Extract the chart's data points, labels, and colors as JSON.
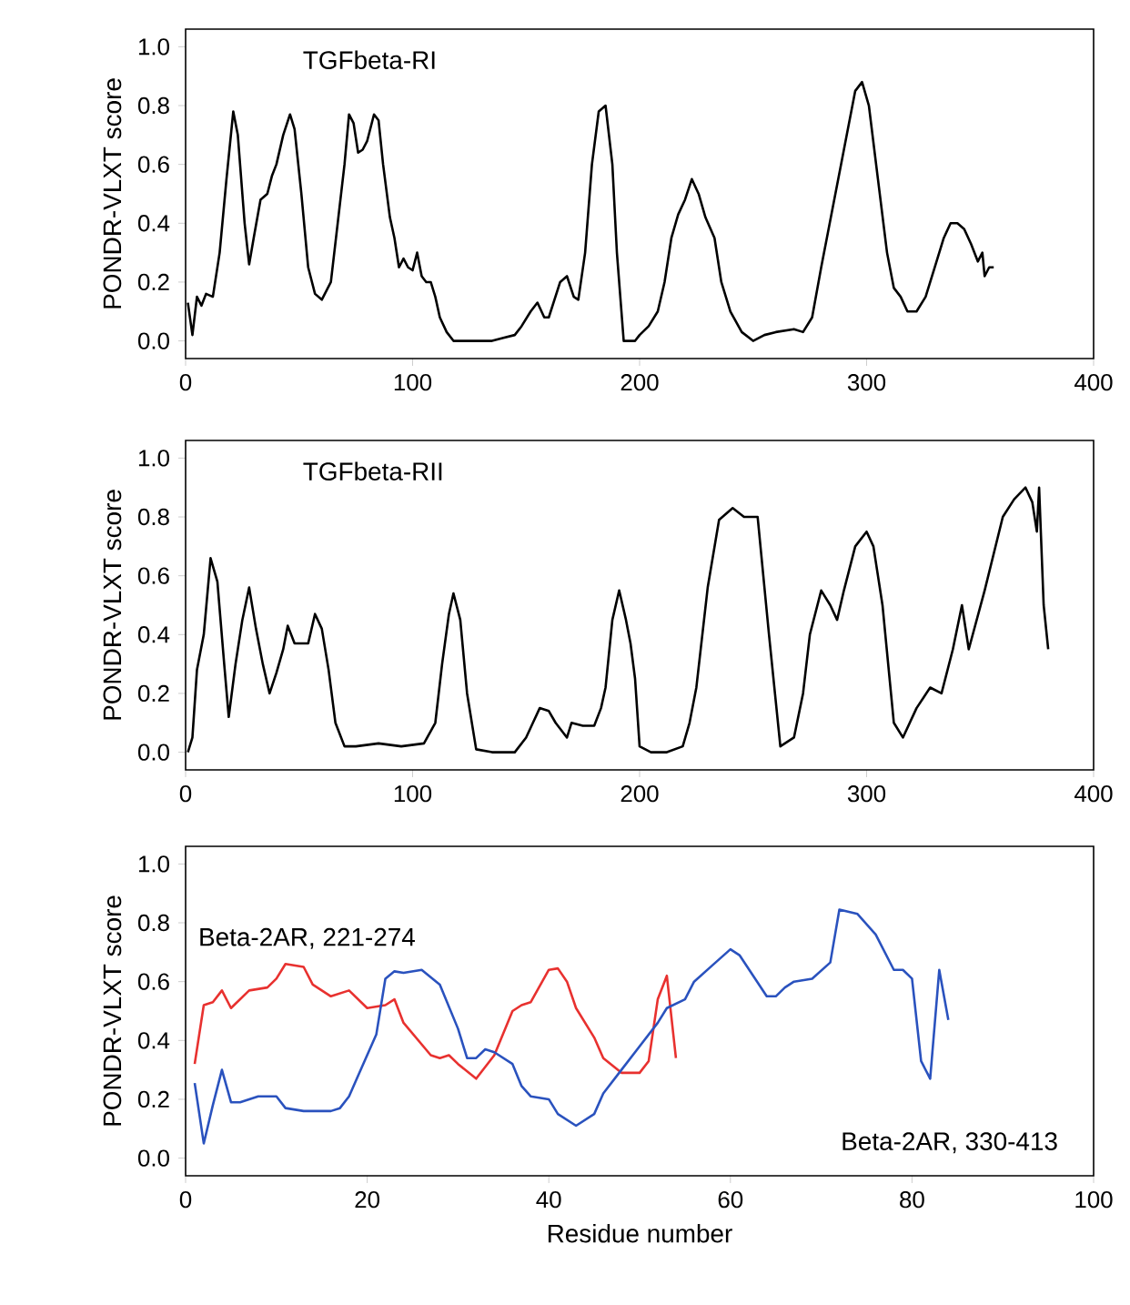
{
  "chart_data": [
    {
      "type": "line",
      "title": "TGFbeta-RI",
      "ylabel": "PONDR-VLXT score",
      "xlim": [
        0,
        400
      ],
      "ylim": [
        -0.06,
        1.06
      ],
      "xticks": [
        0,
        100,
        200,
        300,
        400
      ],
      "yticks": [
        {
          "value": 0,
          "label": "0.0"
        },
        {
          "value": 0.2,
          "label": "0.2"
        },
        {
          "value": 0.4,
          "label": "0.4"
        },
        {
          "value": 0.6,
          "label": "0.6"
        },
        {
          "value": 0.8,
          "label": "0.8"
        },
        {
          "value": 1,
          "label": "1.0"
        }
      ],
      "series": [
        {
          "color": "#000000",
          "x": [
            1,
            3,
            5,
            7,
            9,
            12,
            15,
            18,
            21,
            23,
            26,
            28,
            30,
            33,
            36,
            38,
            40,
            43,
            46,
            48,
            51,
            54,
            57,
            60,
            64,
            67,
            70,
            72,
            74,
            76,
            78,
            80,
            83,
            85,
            87,
            90,
            92,
            94,
            96,
            98,
            100,
            102,
            104,
            106,
            108,
            110,
            112,
            115,
            118,
            125,
            135,
            140,
            145,
            148,
            152,
            155,
            158,
            160,
            165,
            168,
            171,
            173,
            176,
            179,
            182,
            185,
            188,
            190,
            193,
            198,
            200,
            204,
            208,
            211,
            214,
            217,
            220,
            223,
            226,
            229,
            233,
            236,
            240,
            245,
            250,
            255,
            260,
            268,
            272,
            276,
            280,
            285,
            290,
            295,
            298,
            301,
            305,
            309,
            312,
            315,
            318,
            322,
            326,
            330,
            334,
            337,
            340,
            343,
            346,
            349,
            351,
            352,
            354,
            356
          ],
          "values": [
            0.13,
            0.02,
            0.15,
            0.12,
            0.16,
            0.15,
            0.3,
            0.55,
            0.78,
            0.7,
            0.4,
            0.26,
            0.35,
            0.48,
            0.5,
            0.56,
            0.6,
            0.7,
            0.77,
            0.72,
            0.5,
            0.25,
            0.16,
            0.14,
            0.2,
            0.4,
            0.6,
            0.77,
            0.74,
            0.64,
            0.65,
            0.68,
            0.77,
            0.75,
            0.6,
            0.42,
            0.35,
            0.25,
            0.28,
            0.25,
            0.24,
            0.3,
            0.22,
            0.2,
            0.2,
            0.15,
            0.08,
            0.03,
            0.0,
            0.0,
            0.0,
            0.01,
            0.02,
            0.05,
            0.1,
            0.13,
            0.08,
            0.08,
            0.2,
            0.22,
            0.15,
            0.14,
            0.3,
            0.6,
            0.78,
            0.8,
            0.6,
            0.3,
            0.0,
            0.0,
            0.02,
            0.05,
            0.1,
            0.2,
            0.35,
            0.43,
            0.48,
            0.55,
            0.5,
            0.42,
            0.35,
            0.2,
            0.1,
            0.03,
            0.0,
            0.02,
            0.03,
            0.04,
            0.03,
            0.08,
            0.25,
            0.45,
            0.65,
            0.85,
            0.88,
            0.8,
            0.55,
            0.3,
            0.18,
            0.15,
            0.1,
            0.1,
            0.15,
            0.25,
            0.35,
            0.4,
            0.4,
            0.38,
            0.33,
            0.27,
            0.3,
            0.22,
            0.25,
            0.25
          ]
        }
      ]
    },
    {
      "type": "line",
      "title": "TGFbeta-RII",
      "ylabel": "PONDR-VLXT score",
      "xlim": [
        0,
        400
      ],
      "ylim": [
        -0.06,
        1.06
      ],
      "xticks": [
        0,
        100,
        200,
        300,
        400
      ],
      "yticks": [
        {
          "value": 0,
          "label": "0.0"
        },
        {
          "value": 0.2,
          "label": "0.2"
        },
        {
          "value": 0.4,
          "label": "0.4"
        },
        {
          "value": 0.6,
          "label": "0.6"
        },
        {
          "value": 0.8,
          "label": "0.8"
        },
        {
          "value": 1,
          "label": "1.0"
        }
      ],
      "series": [
        {
          "color": "#000000",
          "x": [
            1,
            3,
            5,
            8,
            11,
            14,
            17,
            19,
            22,
            25,
            28,
            31,
            34,
            37,
            40,
            43,
            45,
            48,
            51,
            54,
            57,
            60,
            63,
            66,
            70,
            75,
            85,
            95,
            105,
            110,
            113,
            116,
            118,
            121,
            124,
            128,
            135,
            145,
            150,
            153,
            156,
            160,
            163,
            168,
            170,
            175,
            180,
            183,
            185,
            188,
            191,
            194,
            196,
            198,
            200,
            205,
            212,
            219,
            222,
            225,
            230,
            235,
            241,
            246,
            252,
            257,
            262,
            268,
            272,
            275,
            280,
            284,
            287,
            290,
            295,
            300,
            303,
            307,
            312,
            316,
            322,
            328,
            333,
            338,
            342,
            345,
            352,
            360,
            365,
            370,
            373,
            375,
            376,
            378,
            380
          ],
          "values": [
            0.0,
            0.05,
            0.28,
            0.4,
            0.66,
            0.58,
            0.3,
            0.12,
            0.3,
            0.45,
            0.56,
            0.42,
            0.3,
            0.2,
            0.27,
            0.35,
            0.43,
            0.37,
            0.37,
            0.37,
            0.47,
            0.42,
            0.28,
            0.1,
            0.02,
            0.02,
            0.03,
            0.02,
            0.03,
            0.1,
            0.3,
            0.47,
            0.54,
            0.45,
            0.2,
            0.01,
            0.0,
            0.0,
            0.05,
            0.1,
            0.15,
            0.14,
            0.1,
            0.05,
            0.1,
            0.09,
            0.09,
            0.15,
            0.22,
            0.45,
            0.55,
            0.45,
            0.37,
            0.25,
            0.02,
            0.0,
            0.0,
            0.02,
            0.1,
            0.22,
            0.56,
            0.79,
            0.83,
            0.8,
            0.8,
            0.4,
            0.02,
            0.05,
            0.2,
            0.4,
            0.55,
            0.5,
            0.45,
            0.55,
            0.7,
            0.75,
            0.7,
            0.5,
            0.1,
            0.05,
            0.15,
            0.22,
            0.2,
            0.35,
            0.5,
            0.35,
            0.55,
            0.8,
            0.86,
            0.9,
            0.85,
            0.75,
            0.9,
            0.5,
            0.35
          ]
        }
      ]
    },
    {
      "type": "line",
      "xlabel": "Residue number",
      "ylabel": "PONDR-VLXT score",
      "xlim": [
        0,
        100
      ],
      "ylim": [
        -0.06,
        1.06
      ],
      "xticks": [
        0,
        20,
        40,
        60,
        80,
        100
      ],
      "yticks": [
        {
          "value": 0,
          "label": "0.0"
        },
        {
          "value": 0.2,
          "label": "0.2"
        },
        {
          "value": 0.4,
          "label": "0.4"
        },
        {
          "value": 0.6,
          "label": "0.6"
        },
        {
          "value": 0.8,
          "label": "0.8"
        },
        {
          "value": 1,
          "label": "1.0"
        }
      ],
      "series": [
        {
          "name": "Beta-2AR, 221-274",
          "color": "#e8312f",
          "x": [
            1,
            2,
            3,
            4,
            5,
            7,
            9,
            10,
            11,
            13,
            14,
            16,
            18,
            20,
            22,
            23,
            24,
            27,
            28,
            29,
            30,
            32,
            34,
            36,
            37,
            38,
            40,
            41,
            42,
            43,
            45,
            46,
            48,
            50,
            51,
            52,
            53,
            54
          ],
          "values": [
            0.32,
            0.52,
            0.53,
            0.57,
            0.51,
            0.57,
            0.58,
            0.61,
            0.66,
            0.65,
            0.59,
            0.55,
            0.57,
            0.51,
            0.52,
            0.54,
            0.46,
            0.35,
            0.34,
            0.35,
            0.32,
            0.27,
            0.35,
            0.5,
            0.52,
            0.53,
            0.64,
            0.645,
            0.6,
            0.51,
            0.41,
            0.34,
            0.29,
            0.29,
            0.33,
            0.54,
            0.62,
            0.34
          ]
        },
        {
          "name": "Beta-2AR, 330-413",
          "color": "#2a52be",
          "x": [
            1,
            2,
            3,
            4,
            5,
            6,
            8,
            10,
            11,
            13,
            15,
            16,
            17,
            18,
            19,
            21,
            22,
            23,
            24,
            26,
            28,
            30,
            31,
            32,
            33,
            34,
            36,
            37,
            38,
            40,
            41,
            43,
            45,
            46,
            48,
            50,
            52,
            53,
            55,
            56,
            58,
            60,
            61,
            64,
            65,
            66,
            67,
            69,
            71,
            72,
            74,
            76,
            78,
            79,
            80,
            81,
            82,
            83,
            84
          ],
          "values": [
            0.255,
            0.05,
            0.18,
            0.3,
            0.19,
            0.19,
            0.21,
            0.21,
            0.17,
            0.16,
            0.16,
            0.16,
            0.17,
            0.21,
            0.28,
            0.42,
            0.61,
            0.635,
            0.63,
            0.64,
            0.59,
            0.44,
            0.34,
            0.34,
            0.37,
            0.36,
            0.32,
            0.245,
            0.21,
            0.2,
            0.15,
            0.11,
            0.15,
            0.22,
            0.3,
            0.38,
            0.46,
            0.51,
            0.54,
            0.6,
            0.655,
            0.71,
            0.69,
            0.55,
            0.55,
            0.58,
            0.6,
            0.61,
            0.665,
            0.845,
            0.83,
            0.76,
            0.64,
            0.64,
            0.61,
            0.33,
            0.27,
            0.64,
            0.47
          ]
        }
      ]
    }
  ]
}
